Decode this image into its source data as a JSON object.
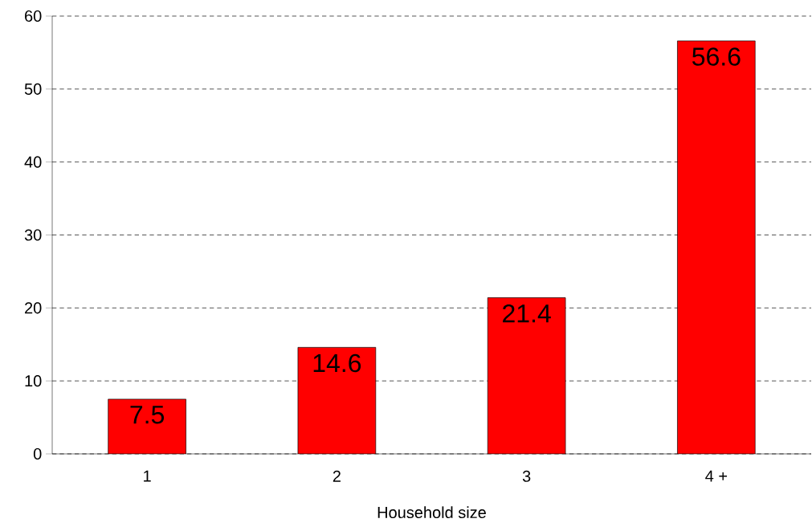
{
  "chart_data": {
    "type": "bar",
    "xlabel": "Household size",
    "categories": [
      "1",
      "2",
      "3",
      "4 +"
    ],
    "values": [
      7.5,
      14.6,
      21.4,
      56.6
    ],
    "color": "#ff0000",
    "ylim": [
      0,
      60
    ],
    "yticks": [
      0,
      10,
      20,
      30,
      40,
      50,
      60
    ],
    "grid": "y",
    "data_labels": true
  }
}
